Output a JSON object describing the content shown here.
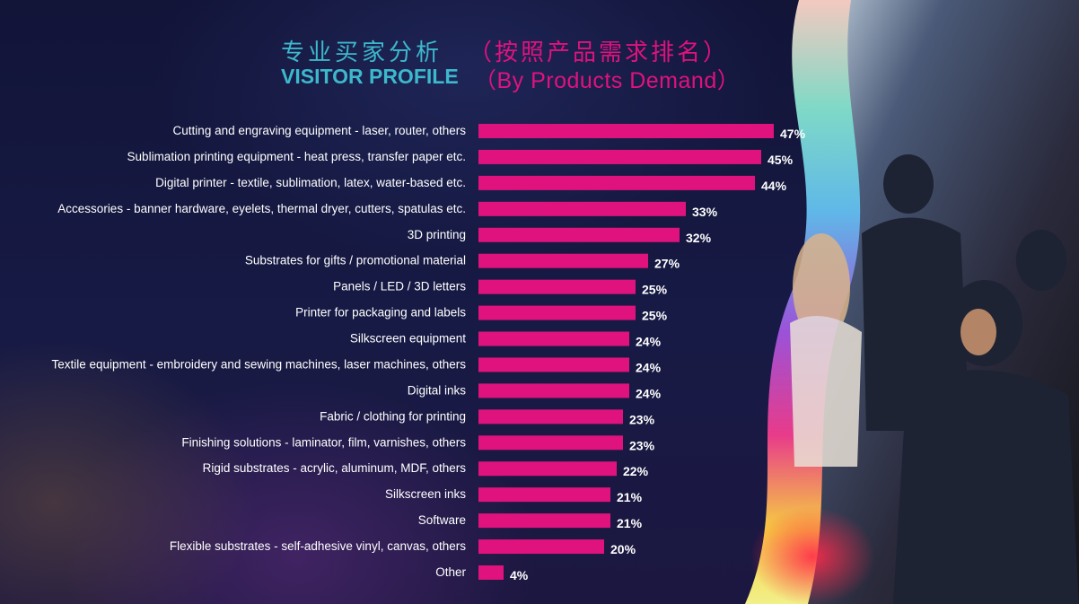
{
  "header": {
    "title_cn": "专业买家分析",
    "subtitle_cn": "（按照产品需求排名）",
    "title_en": "VISITOR PROFILE",
    "subtitle_en": "（By Products Demand）"
  },
  "colors": {
    "bar": "#e0127e",
    "title_accent": "#3db8cc",
    "subtitle_accent": "#e0127e",
    "background": "#15173a"
  },
  "chart_data": {
    "type": "bar",
    "orientation": "horizontal",
    "value_unit": "%",
    "categories": [
      "Cutting and engraving equipment - laser, router, others",
      "Sublimation printing equipment - heat press, transfer paper etc.",
      "Digital printer - textile, sublimation, latex, water-based etc.",
      "Accessories - banner hardware, eyelets, thermal dryer, cutters, spatulas etc.",
      "3D printing",
      "Substrates for gifts / promotional material",
      "Panels / LED / 3D letters",
      "Printer for packaging and labels",
      "Silkscreen equipment",
      "Textile equipment - embroidery and sewing machines, laser machines, others",
      "Digital inks",
      "Fabric / clothing for printing",
      "Finishing solutions - laminator, film, varnishes, others",
      "Rigid substrates - acrylic, aluminum, MDF, others",
      "Silkscreen inks",
      "Software",
      "Flexible substrates - self-adhesive vinyl, canvas, others",
      "Other"
    ],
    "values": [
      47,
      45,
      44,
      33,
      32,
      27,
      25,
      25,
      24,
      24,
      24,
      23,
      23,
      22,
      21,
      21,
      20,
      4
    ],
    "value_labels": [
      "47%",
      "45%",
      "44%",
      "33%",
      "32%",
      "27%",
      "25%",
      "25%",
      "24%",
      "24%",
      "24%",
      "23%",
      "23%",
      "22%",
      "21%",
      "21%",
      "20%",
      "4%"
    ],
    "xlim": [
      0,
      47
    ],
    "grid": false,
    "legend": "none"
  }
}
